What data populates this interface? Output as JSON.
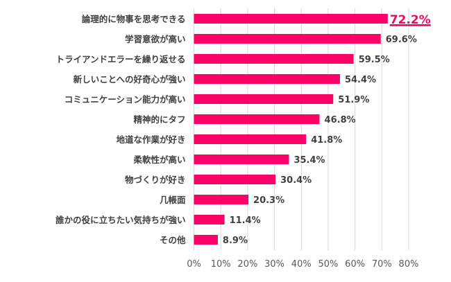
{
  "chart_data": {
    "type": "bar",
    "orientation": "horizontal",
    "categories": [
      "論理的に物事を思考できる",
      "学習意欲が高い",
      "トライアンドエラーを繰り返せる",
      "新しいことへの好奇心が強い",
      "コミュニケーション能力が高い",
      "精神的にタフ",
      "地道な作業が好き",
      "柔軟性が高い",
      "物づくりが好き",
      "几帳面",
      "誰かの役に立ちたい気持ちが強い",
      "その他"
    ],
    "values": [
      72.2,
      69.6,
      59.5,
      54.4,
      51.9,
      46.8,
      41.8,
      35.4,
      30.4,
      20.3,
      11.4,
      8.9
    ],
    "data_labels": [
      "72.2%",
      "69.6%",
      "59.5%",
      "54.4%",
      "51.9%",
      "46.8%",
      "41.8%",
      "35.4%",
      "30.4%",
      "20.3%",
      "11.4%",
      "8.9%"
    ],
    "highlighted_index": 0,
    "xlim": [
      0,
      80
    ],
    "x_ticks": [
      "0%",
      "10%",
      "20%",
      "30%",
      "40%",
      "50%",
      "60%",
      "70%",
      "80%"
    ],
    "grid": true,
    "colors": {
      "bar": "#FF0066",
      "highlight_label": "#FF0066",
      "text": "#404040",
      "grid": "#D9D9D9"
    }
  }
}
